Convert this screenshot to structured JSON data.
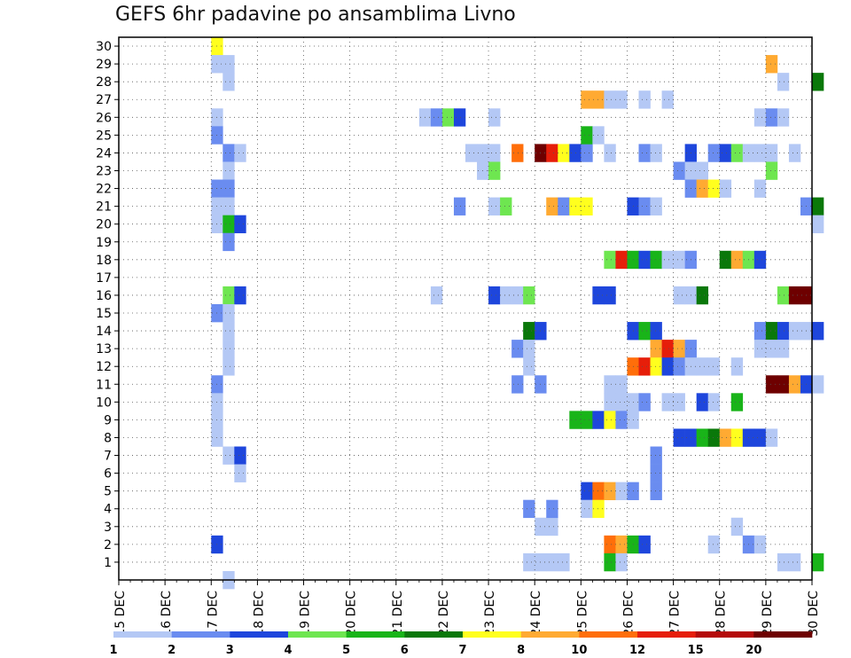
{
  "title": "GEFS 6hr padavine po ansamblima Livno",
  "chart_data": {
    "type": "heatmap",
    "title": "GEFS 6hr padavine po ansamblima Livno",
    "x_labels": [
      "15 DEC",
      "16 DEC",
      "17 DEC",
      "18 DEC",
      "19 DEC",
      "20 DEC",
      "21 DEC",
      "22 DEC",
      "23 DEC",
      "24 DEC",
      "25 DEC",
      "26 DEC",
      "27 DEC",
      "28 DEC",
      "29 DEC",
      "30 DEC"
    ],
    "x_step": "6 hours",
    "y_labels": [
      "1",
      "2",
      "3",
      "4",
      "5",
      "6",
      "7",
      "8",
      "9",
      "10",
      "11",
      "12",
      "13",
      "14",
      "15",
      "16",
      "17",
      "18",
      "19",
      "20",
      "21",
      "22",
      "23",
      "24",
      "25",
      "26",
      "27",
      "28",
      "29",
      "30"
    ],
    "grid": true,
    "legend_placement": "bottom",
    "legend_labels": [
      "1",
      "2",
      "3",
      "4",
      "5",
      "6",
      "7",
      "8",
      "10",
      "12",
      "15",
      "20"
    ],
    "levels": [
      {
        "color": "#b4c8f5"
      },
      {
        "color": "#6a8cf0"
      },
      {
        "color": "#1e46dc"
      },
      {
        "color": "#6ee650"
      },
      {
        "color": "#19b419"
      },
      {
        "color": "#0a780a"
      },
      {
        "color": "#ffff1e"
      },
      {
        "color": "#ffaa32"
      },
      {
        "color": "#ff6e0a"
      },
      {
        "color": "#e61e0a"
      },
      {
        "color": "#b40a0a"
      },
      {
        "color": "#6e0000"
      }
    ],
    "cells": [
      [
        8,
        30,
        7
      ],
      [
        8,
        29,
        1
      ],
      [
        9,
        29,
        1
      ],
      [
        9,
        28,
        1
      ],
      [
        8,
        26,
        1
      ],
      [
        8,
        25,
        2
      ],
      [
        9,
        24,
        2
      ],
      [
        10,
        24,
        1
      ],
      [
        9,
        23,
        1
      ],
      [
        8,
        22,
        2
      ],
      [
        9,
        22,
        2
      ],
      [
        8,
        21,
        1
      ],
      [
        9,
        21,
        1
      ],
      [
        8,
        20,
        1
      ],
      [
        9,
        20,
        5
      ],
      [
        10,
        20,
        3
      ],
      [
        9,
        19,
        2
      ],
      [
        9,
        16,
        4
      ],
      [
        10,
        16,
        3
      ],
      [
        8,
        15,
        2
      ],
      [
        9,
        15,
        1
      ],
      [
        9,
        14,
        1
      ],
      [
        9,
        13,
        1
      ],
      [
        9,
        12,
        1
      ],
      [
        8,
        11,
        2
      ],
      [
        8,
        10,
        1
      ],
      [
        8,
        9,
        1
      ],
      [
        8,
        8,
        1
      ],
      [
        9,
        7,
        1
      ],
      [
        10,
        7,
        3
      ],
      [
        10,
        6,
        1
      ],
      [
        9,
        0,
        1
      ],
      [
        8,
        2,
        3
      ],
      [
        26,
        26,
        1
      ],
      [
        27,
        26,
        2
      ],
      [
        28,
        26,
        4
      ],
      [
        29,
        26,
        3
      ],
      [
        32,
        26,
        1
      ],
      [
        30,
        24,
        1
      ],
      [
        31,
        24,
        1
      ],
      [
        32,
        24,
        1
      ],
      [
        34,
        24,
        9
      ],
      [
        36,
        24,
        12
      ],
      [
        37,
        24,
        10
      ],
      [
        38,
        24,
        7
      ],
      [
        39,
        24,
        3
      ],
      [
        40,
        24,
        2
      ],
      [
        31,
        23,
        1
      ],
      [
        32,
        23,
        4
      ],
      [
        32,
        21,
        1
      ],
      [
        33,
        21,
        4
      ],
      [
        29,
        21,
        2
      ],
      [
        34,
        16,
        1
      ],
      [
        35,
        16,
        4
      ],
      [
        32,
        16,
        3
      ],
      [
        33,
        16,
        1
      ],
      [
        27,
        16,
        1
      ],
      [
        35,
        14,
        6
      ],
      [
        36,
        14,
        3
      ],
      [
        34,
        13,
        2
      ],
      [
        35,
        13,
        1
      ],
      [
        35,
        12,
        1
      ],
      [
        34,
        11,
        2
      ],
      [
        36,
        11,
        2
      ],
      [
        37,
        21,
        8
      ],
      [
        38,
        21,
        2
      ],
      [
        39,
        21,
        7
      ],
      [
        40,
        21,
        7
      ],
      [
        36,
        3,
        1
      ],
      [
        37,
        3,
        1
      ],
      [
        37,
        4,
        2
      ],
      [
        35,
        1,
        1
      ],
      [
        36,
        1,
        1
      ],
      [
        37,
        1,
        1
      ],
      [
        38,
        1,
        1
      ],
      [
        35,
        4,
        2
      ],
      [
        40,
        25,
        5
      ],
      [
        41,
        25,
        1
      ],
      [
        40,
        27,
        8
      ],
      [
        41,
        27,
        8
      ],
      [
        42,
        27,
        1
      ],
      [
        43,
        27,
        1
      ],
      [
        45,
        27,
        1
      ],
      [
        47,
        27,
        1
      ],
      [
        42,
        24,
        1
      ],
      [
        45,
        24,
        2
      ],
      [
        46,
        24,
        1
      ],
      [
        49,
        24,
        3
      ],
      [
        51,
        24,
        2
      ],
      [
        52,
        24,
        3
      ],
      [
        53,
        24,
        4
      ],
      [
        54,
        24,
        1
      ],
      [
        55,
        24,
        1
      ],
      [
        56,
        24,
        1
      ],
      [
        58,
        24,
        1
      ],
      [
        48,
        23,
        2
      ],
      [
        49,
        23,
        1
      ],
      [
        50,
        23,
        1
      ],
      [
        56,
        23,
        4
      ],
      [
        49,
        22,
        2
      ],
      [
        50,
        22,
        8
      ],
      [
        51,
        22,
        7
      ],
      [
        52,
        22,
        1
      ],
      [
        55,
        22,
        1
      ],
      [
        44,
        21,
        3
      ],
      [
        45,
        21,
        2
      ],
      [
        46,
        21,
        1
      ],
      [
        42,
        18,
        4
      ],
      [
        43,
        18,
        10
      ],
      [
        44,
        18,
        5
      ],
      [
        45,
        18,
        3
      ],
      [
        46,
        18,
        5
      ],
      [
        47,
        18,
        1
      ],
      [
        48,
        18,
        1
      ],
      [
        49,
        18,
        2
      ],
      [
        52,
        18,
        6
      ],
      [
        53,
        18,
        8
      ],
      [
        54,
        18,
        4
      ],
      [
        55,
        18,
        3
      ],
      [
        41,
        16,
        3
      ],
      [
        42,
        16,
        3
      ],
      [
        48,
        16,
        1
      ],
      [
        49,
        16,
        1
      ],
      [
        50,
        16,
        6
      ],
      [
        57,
        16,
        4
      ],
      [
        58,
        16,
        12
      ],
      [
        59,
        16,
        12
      ],
      [
        44,
        14,
        3
      ],
      [
        45,
        14,
        5
      ],
      [
        46,
        14,
        3
      ],
      [
        55,
        14,
        2
      ],
      [
        56,
        14,
        6
      ],
      [
        57,
        14,
        3
      ],
      [
        58,
        14,
        1
      ],
      [
        59,
        14,
        1
      ],
      [
        60,
        14,
        3
      ],
      [
        46,
        13,
        8
      ],
      [
        47,
        13,
        10
      ],
      [
        48,
        13,
        8
      ],
      [
        49,
        13,
        2
      ],
      [
        55,
        13,
        1
      ],
      [
        56,
        13,
        1
      ],
      [
        57,
        13,
        1
      ],
      [
        44,
        12,
        9
      ],
      [
        45,
        12,
        10
      ],
      [
        46,
        12,
        7
      ],
      [
        47,
        12,
        3
      ],
      [
        48,
        12,
        2
      ],
      [
        49,
        12,
        1
      ],
      [
        50,
        12,
        1
      ],
      [
        51,
        12,
        1
      ],
      [
        53,
        12,
        1
      ],
      [
        42,
        11,
        1
      ],
      [
        43,
        11,
        1
      ],
      [
        56,
        11,
        12
      ],
      [
        57,
        11,
        12
      ],
      [
        58,
        11,
        8
      ],
      [
        59,
        11,
        3
      ],
      [
        60,
        11,
        1
      ],
      [
        42,
        10,
        1
      ],
      [
        43,
        10,
        1
      ],
      [
        44,
        10,
        1
      ],
      [
        45,
        10,
        2
      ],
      [
        47,
        10,
        1
      ],
      [
        48,
        10,
        1
      ],
      [
        50,
        10,
        3
      ],
      [
        51,
        10,
        1
      ],
      [
        53,
        10,
        5
      ],
      [
        39,
        9,
        5
      ],
      [
        40,
        9,
        5
      ],
      [
        41,
        9,
        3
      ],
      [
        42,
        9,
        7
      ],
      [
        43,
        9,
        2
      ],
      [
        44,
        9,
        1
      ],
      [
        48,
        8,
        3
      ],
      [
        49,
        8,
        3
      ],
      [
        50,
        8,
        5
      ],
      [
        51,
        8,
        6
      ],
      [
        52,
        8,
        8
      ],
      [
        53,
        8,
        7
      ],
      [
        54,
        8,
        3
      ],
      [
        55,
        8,
        3
      ],
      [
        56,
        8,
        1
      ],
      [
        46,
        7,
        2
      ],
      [
        46,
        6,
        2
      ],
      [
        46,
        5,
        2
      ],
      [
        40,
        5,
        3
      ],
      [
        41,
        5,
        9
      ],
      [
        42,
        5,
        8
      ],
      [
        43,
        5,
        1
      ],
      [
        44,
        5,
        2
      ],
      [
        40,
        4,
        1
      ],
      [
        41,
        4,
        7
      ],
      [
        53,
        3,
        1
      ],
      [
        42,
        2,
        9
      ],
      [
        43,
        2,
        8
      ],
      [
        44,
        2,
        5
      ],
      [
        45,
        2,
        3
      ],
      [
        51,
        2,
        1
      ],
      [
        54,
        2,
        2
      ],
      [
        55,
        2,
        1
      ],
      [
        42,
        1,
        5
      ],
      [
        43,
        1,
        1
      ],
      [
        57,
        1,
        1
      ],
      [
        58,
        1,
        1
      ],
      [
        60,
        1,
        5
      ],
      [
        56,
        29,
        8
      ],
      [
        57,
        28,
        1
      ],
      [
        60,
        28,
        6
      ],
      [
        55,
        26,
        1
      ],
      [
        56,
        26,
        2
      ],
      [
        57,
        26,
        1
      ],
      [
        59,
        21,
        2
      ],
      [
        60,
        21,
        6
      ],
      [
        60,
        20,
        1
      ]
    ]
  }
}
